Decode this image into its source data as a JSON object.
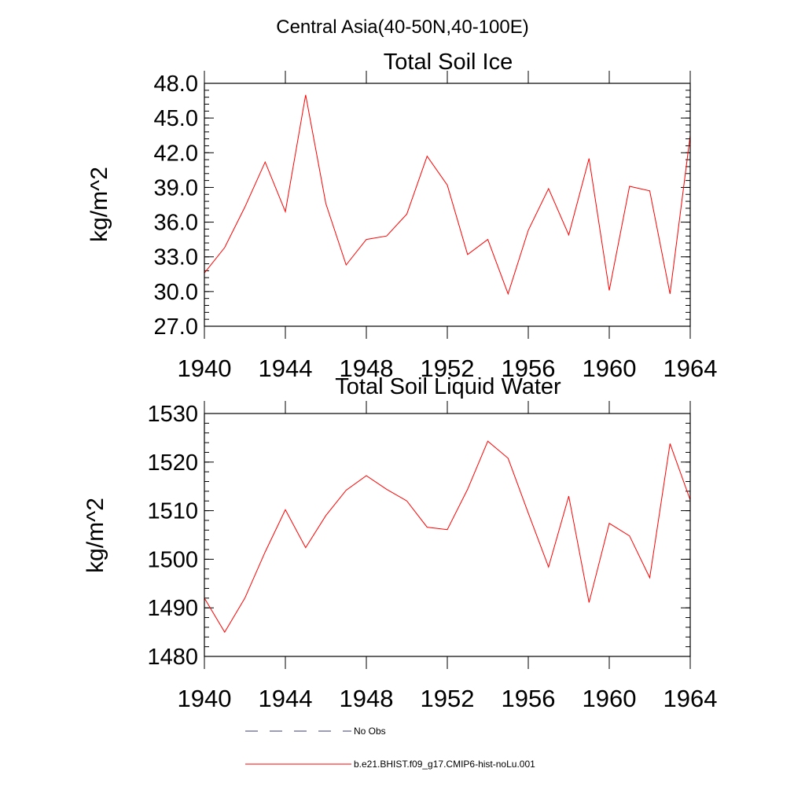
{
  "figure_title": "Central Asia(40-50N,40-100E)",
  "legend": [
    {
      "label": "No Obs",
      "style": "dashed",
      "color": "#3a3a7a"
    },
    {
      "label": "b.e21.BHIST.f09_g17.CMIP6-hist-noLu.001",
      "style": "solid",
      "color": "#ff0000"
    }
  ],
  "chart_data": [
    {
      "type": "line",
      "title": "Total Soil Ice",
      "xlabel": "",
      "ylabel": "kg/m^2",
      "xlim": [
        1940,
        1964
      ],
      "ylim": [
        27.0,
        48.0
      ],
      "x_ticks": [
        "1940",
        "1944",
        "1948",
        "1952",
        "1956",
        "1960",
        "1964"
      ],
      "y_ticks": [
        "27.0",
        "30.0",
        "33.0",
        "36.0",
        "39.0",
        "42.0",
        "45.0",
        "48.0"
      ],
      "series": [
        {
          "color": "#ff0000",
          "x": [
            1940,
            1941,
            1942,
            1943,
            1944,
            1945,
            1946,
            1947,
            1948,
            1949,
            1950,
            1951,
            1952,
            1953,
            1954,
            1955,
            1956,
            1957,
            1958,
            1959,
            1960,
            1961,
            1962,
            1963,
            1964
          ],
          "values": [
            31.6,
            33.8,
            37.3,
            41.2,
            36.9,
            47.0,
            37.6,
            32.3,
            34.5,
            34.8,
            36.7,
            41.7,
            39.2,
            33.2,
            34.5,
            29.8,
            35.3,
            38.9,
            34.9,
            41.5,
            30.1,
            39.1,
            38.7,
            29.8,
            43.5
          ]
        }
      ]
    },
    {
      "type": "line",
      "title": "Total Soil Liquid Water",
      "xlabel": "",
      "ylabel": "kg/m^2",
      "xlim": [
        1940,
        1964
      ],
      "ylim": [
        1480,
        1530
      ],
      "x_ticks": [
        "1940",
        "1944",
        "1948",
        "1952",
        "1956",
        "1960",
        "1964"
      ],
      "y_ticks": [
        "1480",
        "1490",
        "1500",
        "1510",
        "1520",
        "1530"
      ],
      "series": [
        {
          "color": "#ff0000",
          "x": [
            1940,
            1941,
            1942,
            1943,
            1944,
            1945,
            1946,
            1947,
            1948,
            1949,
            1950,
            1951,
            1952,
            1953,
            1954,
            1955,
            1956,
            1957,
            1958,
            1959,
            1960,
            1961,
            1962,
            1963,
            1964
          ],
          "values": [
            1492.0,
            1485.0,
            1492.0,
            1501.5,
            1510.2,
            1502.4,
            1509.0,
            1514.2,
            1517.2,
            1514.4,
            1512.0,
            1506.6,
            1506.1,
            1514.4,
            1524.3,
            1520.8,
            1509.5,
            1498.4,
            1513.0,
            1491.1,
            1507.4,
            1504.8,
            1496.2,
            1523.8,
            1512.2
          ]
        }
      ]
    }
  ]
}
